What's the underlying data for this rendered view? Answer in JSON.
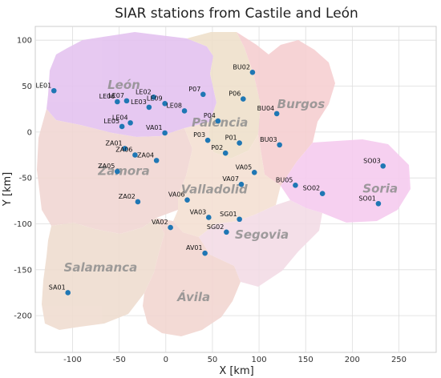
{
  "chart_data": {
    "type": "scatter",
    "title": "SIAR stations from Castile and León",
    "xlabel": "X [km]",
    "ylabel": "Y [km]",
    "xlim": [
      -140,
      290
    ],
    "ylim": [
      -240,
      115
    ],
    "xticks": [
      -100,
      -50,
      0,
      50,
      100,
      150,
      200,
      250
    ],
    "yticks": [
      -200,
      -150,
      -100,
      -50,
      0,
      50,
      100
    ],
    "grid": true,
    "marker_color": "#1f77b4",
    "provinces": [
      {
        "name": "León",
        "x": -45,
        "y": 47,
        "color": "#e4c3f0"
      },
      {
        "name": "Palencia",
        "x": 58,
        "y": 6,
        "color": "#efe0cc"
      },
      {
        "name": "Burgos",
        "x": 145,
        "y": 26,
        "color": "#f6cfd1"
      },
      {
        "name": "Zamora",
        "x": -45,
        "y": -47,
        "color": "#f1d7d3"
      },
      {
        "name": "Valladolid",
        "x": 52,
        "y": -67,
        "color": "#f5e0d3"
      },
      {
        "name": "Soria",
        "x": 230,
        "y": -66,
        "color": "#f6ccef"
      },
      {
        "name": "Segovia",
        "x": 103,
        "y": -116,
        "color": "#f3dce6"
      },
      {
        "name": "Salamanca",
        "x": -70,
        "y": -152,
        "color": "#efddd0"
      },
      {
        "name": "Ávila",
        "x": 30,
        "y": -184,
        "color": "#f2d6d1"
      }
    ],
    "stations": [
      {
        "name": "LE01",
        "x": -120,
        "y": 45
      },
      {
        "name": "LE07",
        "x": -42,
        "y": 34
      },
      {
        "name": "LE06",
        "x": -52,
        "y": 33
      },
      {
        "name": "LE02",
        "x": -13,
        "y": 38
      },
      {
        "name": "LE09",
        "x": -1,
        "y": 31
      },
      {
        "name": "LE03",
        "x": -18,
        "y": 27
      },
      {
        "name": "LE08",
        "x": 20,
        "y": 23
      },
      {
        "name": "LE04",
        "x": -38,
        "y": 10
      },
      {
        "name": "LE05",
        "x": -47,
        "y": 6
      },
      {
        "name": "P07",
        "x": 40,
        "y": 41
      },
      {
        "name": "P06",
        "x": 83,
        "y": 36
      },
      {
        "name": "P04",
        "x": 56,
        "y": 12
      },
      {
        "name": "BU02",
        "x": 93,
        "y": 65
      },
      {
        "name": "BU04",
        "x": 119,
        "y": 20
      },
      {
        "name": "VA01",
        "x": -1,
        "y": -1
      },
      {
        "name": "P03",
        "x": 45,
        "y": -9
      },
      {
        "name": "P01",
        "x": 79,
        "y": -12
      },
      {
        "name": "P02",
        "x": 64,
        "y": -23
      },
      {
        "name": "BU03",
        "x": 122,
        "y": -14
      },
      {
        "name": "ZA01",
        "x": -44,
        "y": -18
      },
      {
        "name": "ZA06",
        "x": -33,
        "y": -25
      },
      {
        "name": "ZA04",
        "x": -10,
        "y": -31
      },
      {
        "name": "ZA05",
        "x": -52,
        "y": -43
      },
      {
        "name": "VA05",
        "x": 95,
        "y": -44
      },
      {
        "name": "SO03",
        "x": 233,
        "y": -37
      },
      {
        "name": "VA07",
        "x": 81,
        "y": -57
      },
      {
        "name": "BU05",
        "x": 139,
        "y": -58
      },
      {
        "name": "SO02",
        "x": 168,
        "y": -67
      },
      {
        "name": "ZA02",
        "x": -30,
        "y": -76
      },
      {
        "name": "VA06",
        "x": 23,
        "y": -74
      },
      {
        "name": "SO01",
        "x": 228,
        "y": -78
      },
      {
        "name": "VA03",
        "x": 46,
        "y": -93
      },
      {
        "name": "SG01",
        "x": 79,
        "y": -95
      },
      {
        "name": "VA02",
        "x": 5,
        "y": -104
      },
      {
        "name": "SG02",
        "x": 65,
        "y": -109
      },
      {
        "name": "AV01",
        "x": 42,
        "y": -132
      },
      {
        "name": "SA01",
        "x": -105,
        "y": -175
      }
    ]
  }
}
